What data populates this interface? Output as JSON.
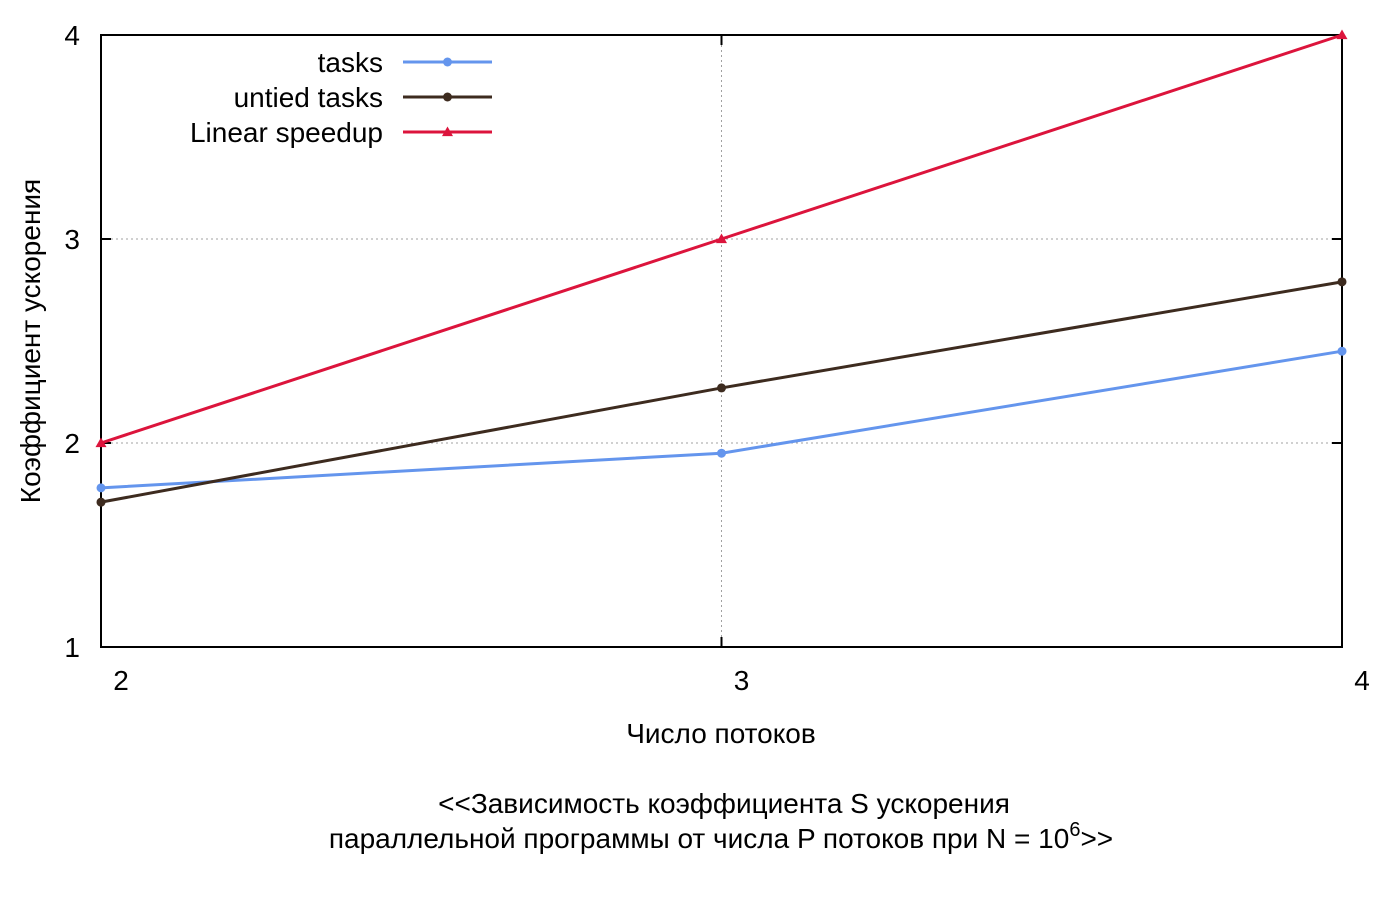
{
  "chart_data": {
    "type": "line",
    "x": [
      2,
      3,
      4
    ],
    "xlim": [
      2,
      4
    ],
    "ylim": [
      1,
      4
    ],
    "xticks": [
      2,
      3,
      4
    ],
    "yticks": [
      1,
      2,
      3,
      4
    ],
    "xlabel": "Число потоков",
    "ylabel": "Коэффициент ускорения",
    "caption": {
      "line1": "<<Зависимость коэффициента S ускорения",
      "line2_main": "параллельной программы от числа P потоков при N = 10",
      "line2_sup": "6",
      "line2_end": ">>"
    },
    "grid": true,
    "legend_position": "top-left",
    "series": [
      {
        "name": "tasks",
        "values": [
          1.78,
          1.95,
          2.45
        ],
        "color": "#6495ed",
        "marker": "circle"
      },
      {
        "name": "untied tasks",
        "values": [
          1.71,
          2.27,
          2.79
        ],
        "color": "#3d2b1f",
        "marker": "circle"
      },
      {
        "name": "Linear speedup",
        "values": [
          2,
          3,
          4
        ],
        "color": "#dc143c",
        "marker": "triangle"
      }
    ]
  }
}
